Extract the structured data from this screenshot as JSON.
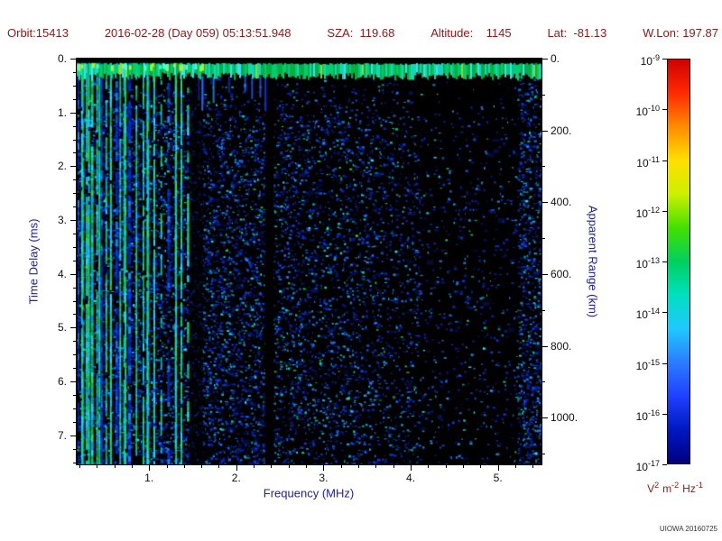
{
  "header": {
    "fields": [
      "Orbit:15413",
      "2016-02-28 (Day 059) 05:13:51.948",
      "SZA:  119.68",
      "Altitude:    1145",
      "Lat:  -81.13",
      "W.Lon: 197.87"
    ]
  },
  "chart_data": {
    "type": "heatmap",
    "title": "",
    "xlabel": "Frequency (MHz)",
    "ylabel_left": "Time Delay (ms)",
    "ylabel_right": "Apparent Range (km)",
    "x_range_mhz": [
      0.17,
      5.5
    ],
    "y_range_ms": [
      0,
      7.54
    ],
    "right_axis_range_km": [
      0,
      1130
    ],
    "x_ticks": [
      1,
      2,
      3,
      4,
      5
    ],
    "x_tick_labels": [
      "1.",
      "2.",
      "3.",
      "4.",
      "5."
    ],
    "y_ticks": [
      0,
      1,
      2,
      3,
      4,
      5,
      6,
      7
    ],
    "y_tick_labels": [
      "0.",
      "1.",
      "2.",
      "3.",
      "4.",
      "5.",
      "6.",
      "7."
    ],
    "right_ticks": [
      0,
      200,
      400,
      600,
      800,
      1000
    ],
    "right_tick_labels": [
      "0.",
      "200.",
      "400.",
      "600.",
      "800.",
      "1000."
    ],
    "grid": false,
    "background_color": "#000000",
    "colorbar": {
      "scale": "log",
      "base": "10",
      "exponents": [
        "-9",
        "-10",
        "-11",
        "-12",
        "-13",
        "-14",
        "-15",
        "-16",
        "-17"
      ],
      "unit_parts": [
        {
          "t": "V",
          "s": "2"
        },
        {
          "t": "m",
          "s": "-2"
        },
        {
          "t": "Hz",
          "s": "-1"
        }
      ],
      "colors": [
        "#d00000",
        "#ff2a00",
        "#ff8c00",
        "#ffe000",
        "#ccf000",
        "#44e000",
        "#00d060",
        "#00e0c0",
        "#20c8ff",
        "#2a7cff",
        "#2040ff",
        "#0018c0",
        "#000080"
      ]
    },
    "features": {
      "echo_band_ms": [
        0.08,
        0.32
      ],
      "low_freq_lines_mhz": [
        0.17,
        1.44
      ],
      "interference_gap_mhz": [
        2.33,
        2.43
      ],
      "noise": "blue speckle background, density decreasing with frequency, dense vertical cyan/green plasma lines below 1.45 MHz, sparse region 4.2-5.2 MHz, enhanced column near 5.3-5.5 MHz"
    }
  },
  "footer": {
    "credit": "UIOWA 20160725"
  },
  "colors": {
    "header_text": "#8b1a1a",
    "axis_title": "#22229a",
    "tick_label": "#111111",
    "unit_text": "#8b1a1a"
  }
}
